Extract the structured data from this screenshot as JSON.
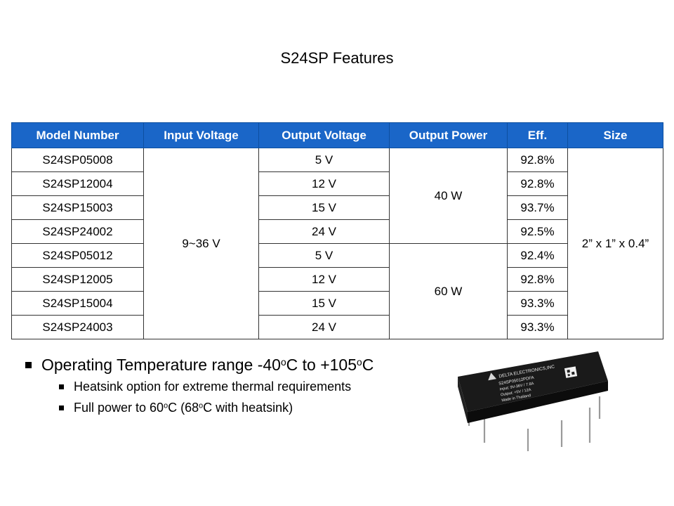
{
  "slide": {
    "title": "S24SP Features"
  },
  "table": {
    "headers": [
      "Model Number",
      "Input Voltage",
      "Output Voltage",
      "Output Power",
      "Eff.",
      "Size"
    ],
    "input_voltage": "9~36 V",
    "size": "2” x 1” x 0.4”",
    "power_groups": [
      "40 W",
      "60 W"
    ],
    "rows": [
      {
        "model": "S24SP05008",
        "vout": "5 V",
        "eff": "92.8%"
      },
      {
        "model": "S24SP12004",
        "vout": "12 V",
        "eff": "92.8%"
      },
      {
        "model": "S24SP15003",
        "vout": "15 V",
        "eff": "93.7%"
      },
      {
        "model": "S24SP24002",
        "vout": "24 V",
        "eff": "92.5%"
      },
      {
        "model": "S24SP05012",
        "vout": "5 V",
        "eff": "92.4%"
      },
      {
        "model": "S24SP12005",
        "vout": "12 V",
        "eff": "92.8%"
      },
      {
        "model": "S24SP15004",
        "vout": "15 V",
        "eff": "93.3%"
      },
      {
        "model": "S24SP24003",
        "vout": "24 V",
        "eff": "93.3%"
      }
    ]
  },
  "bullets": {
    "main": {
      "pre": "Operating Temperature range -40",
      "sup1": "o",
      "mid": "C to +105",
      "sup2": "o",
      "post": "C"
    },
    "sub1": "Heatsink option for extreme thermal requirements",
    "sub2": {
      "pre": "Full power to 60",
      "sup1": "o",
      "mid": "C (68",
      "sup2": "o",
      "post": "C with heatsink)"
    }
  },
  "product_label": {
    "brand": "DELTA ELECTRONICS,INC",
    "model": "S24SP05012PDFA",
    "line_input": "Input: 9V-36V / 7.8A",
    "line_output": "Output: +5V / 12A",
    "line_origin": "Made in Thailand"
  }
}
